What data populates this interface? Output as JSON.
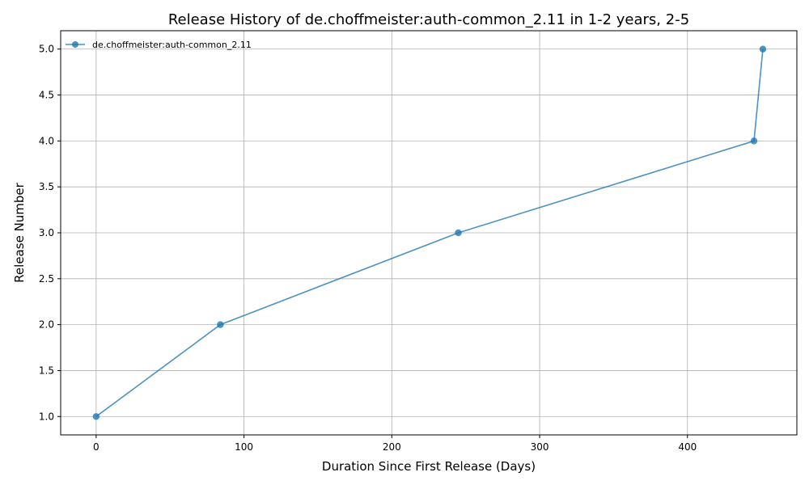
{
  "chart_data": {
    "type": "line",
    "title": "Release History of de.choffmeister:auth-common_2.11 in 1-2 years, 2-5",
    "xlabel": "Duration Since First Release (Days)",
    "ylabel": "Release Number",
    "xlim": [
      -24,
      474
    ],
    "ylim": [
      0.8,
      5.2
    ],
    "xticks": [
      0,
      100,
      200,
      300,
      400
    ],
    "yticks": [
      1.0,
      1.5,
      2.0,
      2.5,
      3.0,
      3.5,
      4.0,
      4.5,
      5.0
    ],
    "xtick_labels": [
      "0",
      "100",
      "200",
      "300",
      "400"
    ],
    "ytick_labels": [
      "1.0",
      "1.5",
      "2.0",
      "2.5",
      "3.0",
      "3.5",
      "4.0",
      "4.5",
      "5.0"
    ],
    "grid": true,
    "legend_position": "top-left",
    "series": [
      {
        "name": "de.choffmeister:auth-common_2.11",
        "color": "#1f77b4",
        "x": [
          0,
          84,
          245,
          445,
          451
        ],
        "y": [
          1,
          2,
          3,
          4,
          5
        ]
      }
    ]
  }
}
